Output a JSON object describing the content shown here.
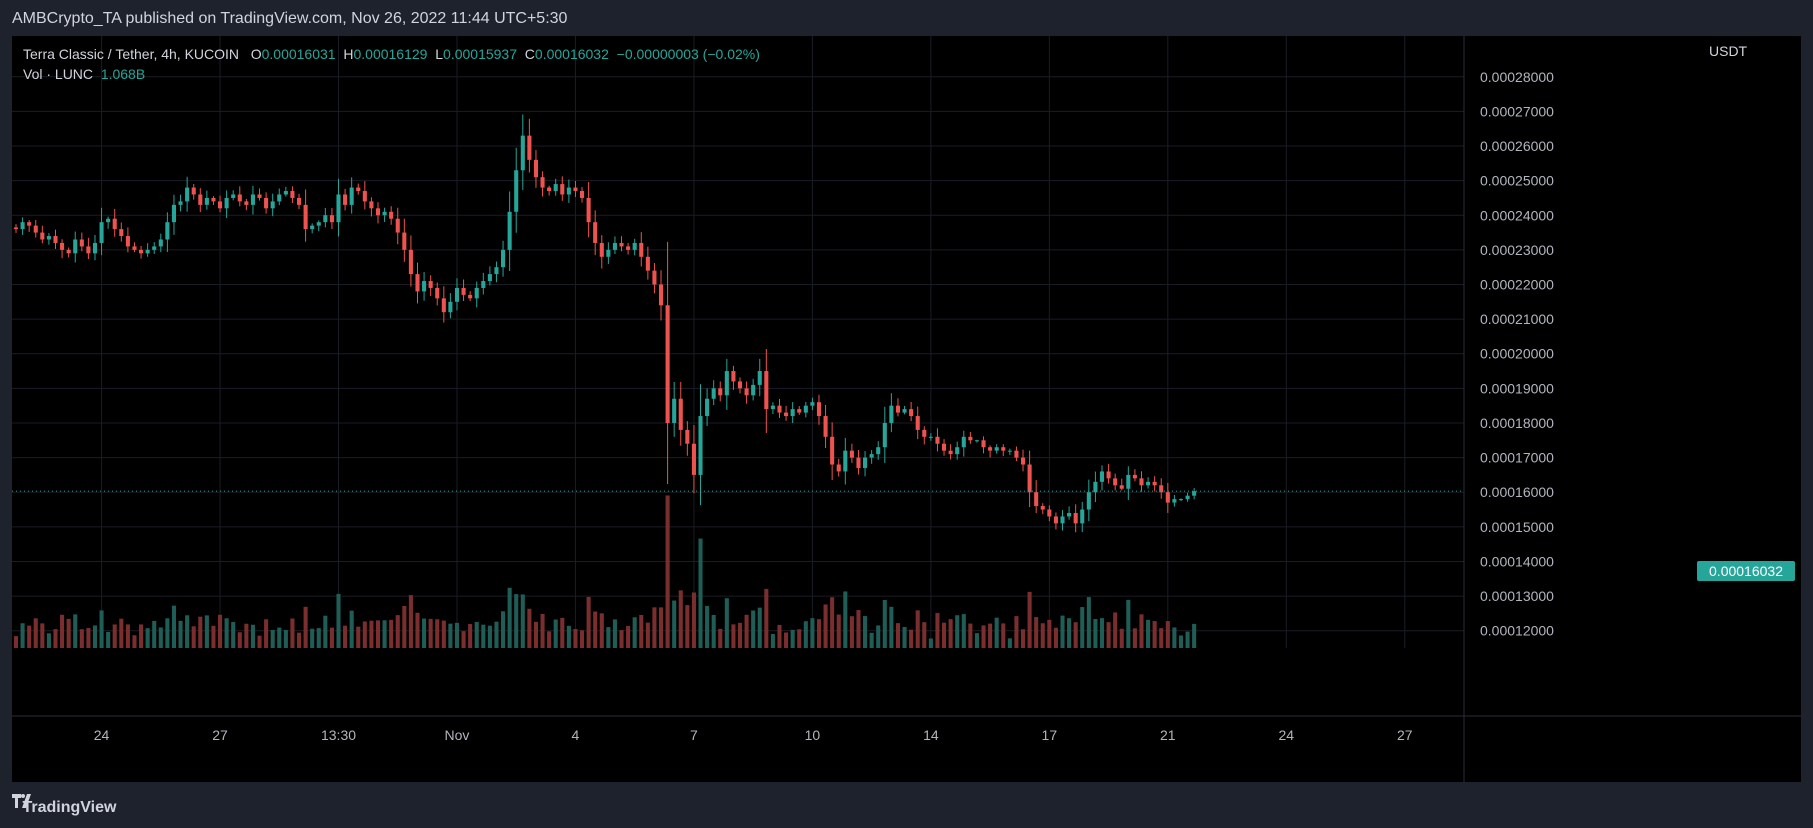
{
  "header": {
    "published_text": "AMBCrypto_TA published on TradingView.com, Nov 26, 2022 11:44 UTC+5:30"
  },
  "legend": {
    "symbol": "Terra Classic / Tether, 4h, KUCOIN",
    "o_label": "O",
    "o_value": "0.00016031",
    "h_label": "H",
    "h_value": "0.00016129",
    "l_label": "L",
    "l_value": "0.00015937",
    "c_label": "C",
    "c_value": "0.00016032",
    "change": "−0.00000003 (−0.02%)",
    "vol_label": "Vol · LUNC",
    "vol_value": "1.068B"
  },
  "price_axis": {
    "currency": "USDT",
    "current_price": "0.00016032"
  },
  "footer": {
    "brand": "TradingView"
  },
  "colors": {
    "up": "#26a69a",
    "down": "#ef5350",
    "vol_up": "#1f5e57",
    "vol_down": "#7a2e2e",
    "background": "#000000",
    "grid": "#1a1d26",
    "axis_text": "#b2b5be"
  },
  "chart_data": {
    "type": "candlestick",
    "title": "Terra Classic / Tether, 4h, KUCOIN",
    "ylim": [
      0.000115,
      0.000286
    ],
    "y_ticks": [
      "0.00012000",
      "0.00013000",
      "0.00014000",
      "0.00015000",
      "0.00016000",
      "0.00017000",
      "0.00018000",
      "0.00019000",
      "0.00020000",
      "0.00021000",
      "0.00022000",
      "0.00023000",
      "0.00024000",
      "0.00025000",
      "0.00026000",
      "0.00027000",
      "0.00028000"
    ],
    "x_ticks": [
      {
        "label": "24",
        "bar": 13
      },
      {
        "label": "27",
        "bar": 31
      },
      {
        "label": "13:30",
        "bar": 49
      },
      {
        "label": "Nov",
        "bar": 67
      },
      {
        "label": "4",
        "bar": 85
      },
      {
        "label": "7",
        "bar": 103
      },
      {
        "label": "10",
        "bar": 121
      },
      {
        "label": "14",
        "bar": 139
      },
      {
        "label": "17",
        "bar": 157
      },
      {
        "label": "21",
        "bar": 175
      },
      {
        "label": "24",
        "bar": 193
      },
      {
        "label": "27",
        "bar": 211
      }
    ],
    "last_price": 0.00016032,
    "closes": [
      0.000236,
      0.000238,
      0.000237,
      0.000235,
      0.000233,
      0.000234,
      0.000232,
      0.00023,
      0.000229,
      0.000233,
      0.000231,
      0.000229,
      0.000232,
      0.000238,
      0.000239,
      0.000236,
      0.000234,
      0.000231,
      0.00023,
      0.000229,
      0.00023,
      0.000231,
      0.000233,
      0.000238,
      0.000243,
      0.000244,
      0.000248,
      0.000246,
      0.000243,
      0.000245,
      0.000244,
      0.000242,
      0.000245,
      0.000246,
      0.000244,
      0.000243,
      0.000246,
      0.000245,
      0.000242,
      0.000244,
      0.000246,
      0.000247,
      0.000245,
      0.000243,
      0.000236,
      0.000237,
      0.000238,
      0.00024,
      0.000238,
      0.000246,
      0.000243,
      0.000248,
      0.000247,
      0.000244,
      0.000242,
      0.00024,
      0.000241,
      0.000239,
      0.000235,
      0.00023,
      0.000223,
      0.000218,
      0.000221,
      0.000219,
      0.000216,
      0.000212,
      0.000215,
      0.000219,
      0.000217,
      0.000216,
      0.000219,
      0.000221,
      0.000223,
      0.000225,
      0.00023,
      0.000241,
      0.000253,
      0.000263,
      0.000256,
      0.000251,
      0.000248,
      0.000247,
      0.000249,
      0.000246,
      0.000248,
      0.000247,
      0.000245,
      0.000238,
      0.000232,
      0.000228,
      0.00023,
      0.000232,
      0.000231,
      0.00023,
      0.000232,
      0.000228,
      0.000224,
      0.00022,
      0.000214,
      0.00018,
      0.000187,
      0.000178,
      0.000174,
      0.000165,
      0.000182,
      0.000187,
      0.00019,
      0.000188,
      0.000195,
      0.000192,
      0.00019,
      0.000188,
      0.000191,
      0.000195,
      0.000184,
      0.000185,
      0.000183,
      0.000182,
      0.000184,
      0.000183,
      0.000185,
      0.000186,
      0.000182,
      0.000176,
      0.000168,
      0.000166,
      0.000172,
      0.00017,
      0.000167,
      0.00017,
      0.000171,
      0.000173,
      0.00018,
      0.000185,
      0.000183,
      0.000184,
      0.000182,
      0.000178,
      0.000176,
      0.000176,
      0.000174,
      0.000172,
      0.000171,
      0.000173,
      0.000176,
      0.000175,
      0.000175,
      0.000173,
      0.000172,
      0.000173,
      0.000172,
      0.000172,
      0.00017,
      0.000168,
      0.00016,
      0.000156,
      0.000155,
      0.000153,
      0.000151,
      0.000153,
      0.000154,
      0.000151,
      0.000155,
      0.00016,
      0.000163,
      0.000166,
      0.000164,
      0.000162,
      0.000161,
      0.000165,
      0.000164,
      0.000162,
      0.000163,
      0.000162,
      0.00016,
      0.000157,
      0.000158,
      0.000158,
      0.000159,
      0.0001603
    ]
  }
}
